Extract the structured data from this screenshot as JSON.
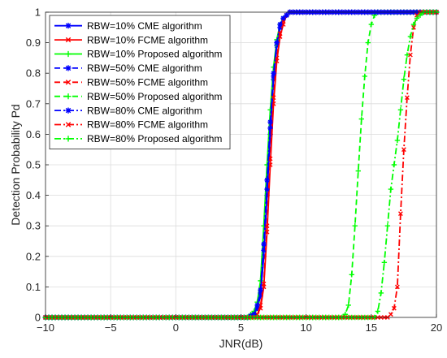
{
  "chart_data": {
    "type": "line",
    "title": "",
    "xlabel": "JNR(dB)",
    "ylabel": "Detection Probability Pd",
    "xlim": [
      -10,
      20
    ],
    "ylim": [
      0,
      1
    ],
    "xticks": [
      -10,
      -5,
      0,
      5,
      10,
      15,
      20
    ],
    "yticks": [
      0,
      0.1,
      0.2,
      0.3,
      0.4,
      0.5,
      0.6,
      0.7,
      0.8,
      0.9,
      1
    ],
    "grid": true,
    "legend_position": "top-left",
    "series": [
      {
        "name": "RBW=10% CME algorithm",
        "color": "#0000ff",
        "dash": "solid",
        "marker": "asterisk",
        "x": [
          -10,
          5.5,
          6.0,
          6.25,
          6.5,
          6.75,
          7.0,
          7.25,
          7.5,
          7.75,
          8.0,
          8.25,
          8.5,
          8.75,
          9.0,
          9.5,
          10,
          20
        ],
        "y": [
          0,
          0,
          0.01,
          0.03,
          0.07,
          0.2,
          0.4,
          0.6,
          0.78,
          0.89,
          0.95,
          0.98,
          0.99,
          1.0,
          1.0,
          1.0,
          1.0,
          1.0
        ]
      },
      {
        "name": "RBW=10% FCME algorithm",
        "color": "#ff0000",
        "dash": "solid",
        "marker": "cross",
        "x": [
          -10,
          5.75,
          6.25,
          6.5,
          6.75,
          7.0,
          7.25,
          7.5,
          7.75,
          8.0,
          8.25,
          8.5,
          8.75,
          9.0,
          9.25,
          9.5,
          10,
          20
        ],
        "y": [
          0,
          0,
          0.01,
          0.03,
          0.1,
          0.28,
          0.5,
          0.7,
          0.84,
          0.92,
          0.96,
          0.99,
          1.0,
          1.0,
          1.0,
          1.0,
          1.0,
          1.0
        ]
      },
      {
        "name": "RBW=10% Proposed algorithm",
        "color": "#00ff00",
        "dash": "solid",
        "marker": "plus",
        "x": [
          -10,
          5.5,
          6.0,
          6.25,
          6.5,
          6.75,
          7.0,
          7.25,
          7.5,
          7.75,
          8.0,
          8.25,
          8.5,
          8.75,
          9.0,
          9.5,
          10,
          20
        ],
        "y": [
          0,
          0,
          0.02,
          0.05,
          0.12,
          0.3,
          0.5,
          0.68,
          0.82,
          0.91,
          0.96,
          0.98,
          0.99,
          1.0,
          1.0,
          1.0,
          1.0,
          1.0
        ]
      },
      {
        "name": "RBW=50% CME algorithm",
        "color": "#0000ff",
        "dash": "dashed",
        "marker": "asterisk",
        "x": [
          -10,
          5.5,
          6.0,
          6.25,
          6.5,
          6.75,
          7.0,
          7.25,
          7.5,
          7.75,
          8.0,
          8.25,
          8.5,
          8.75,
          9.0,
          9.5,
          10,
          20
        ],
        "y": [
          0,
          0,
          0.01,
          0.03,
          0.08,
          0.22,
          0.42,
          0.62,
          0.79,
          0.9,
          0.95,
          0.98,
          0.99,
          1.0,
          1.0,
          1.0,
          1.0,
          1.0
        ]
      },
      {
        "name": "RBW=50% FCME algorithm",
        "color": "#ff0000",
        "dash": "dashed",
        "marker": "cross",
        "x": [
          -10,
          5.75,
          6.25,
          6.5,
          6.75,
          7.0,
          7.25,
          7.5,
          7.75,
          8.0,
          8.25,
          8.5,
          8.75,
          9.0,
          9.25,
          9.5,
          10,
          20
        ],
        "y": [
          0,
          0,
          0.01,
          0.04,
          0.11,
          0.3,
          0.52,
          0.72,
          0.85,
          0.93,
          0.97,
          0.99,
          1.0,
          1.0,
          1.0,
          1.0,
          1.0,
          1.0
        ]
      },
      {
        "name": "RBW=50% Proposed algorithm",
        "color": "#00ff00",
        "dash": "dashed",
        "marker": "plus",
        "x": [
          -10,
          12.75,
          13.0,
          13.25,
          13.5,
          13.75,
          14.0,
          14.25,
          14.5,
          14.75,
          15.0,
          15.25,
          15.5,
          15.75,
          16.0,
          16.25,
          20
        ],
        "y": [
          0,
          0,
          0.01,
          0.04,
          0.14,
          0.3,
          0.48,
          0.65,
          0.79,
          0.9,
          0.96,
          0.99,
          1.0,
          1.0,
          1.0,
          1.0,
          1.0
        ]
      },
      {
        "name": "RBW=80% CME algorithm",
        "color": "#0000ff",
        "dash": "dashdot",
        "marker": "asterisk",
        "x": [
          -10,
          5.5,
          6.0,
          6.25,
          6.5,
          6.75,
          7.0,
          7.25,
          7.5,
          7.75,
          8.0,
          8.25,
          8.5,
          8.75,
          9.0,
          9.5,
          10,
          20
        ],
        "y": [
          0,
          0,
          0.01,
          0.04,
          0.09,
          0.24,
          0.45,
          0.64,
          0.8,
          0.9,
          0.96,
          0.98,
          0.99,
          1.0,
          1.0,
          1.0,
          1.0,
          1.0
        ]
      },
      {
        "name": "RBW=80% FCME algorithm",
        "color": "#ff0000",
        "dash": "dashdot",
        "marker": "cross",
        "x": [
          -10,
          15.75,
          16.25,
          16.5,
          16.75,
          17.0,
          17.25,
          17.5,
          17.75,
          18.0,
          18.25,
          18.5,
          18.75,
          19.0,
          19.25,
          19.5,
          20
        ],
        "y": [
          0,
          0,
          0,
          0.01,
          0.03,
          0.1,
          0.34,
          0.55,
          0.72,
          0.86,
          0.95,
          0.99,
          1.0,
          1.0,
          1.0,
          1.0,
          1.0
        ]
      },
      {
        "name": "RBW=80% Proposed algorithm",
        "color": "#00ff00",
        "dash": "dashdot",
        "marker": "plus",
        "x": [
          -10,
          15.25,
          15.5,
          15.75,
          16.0,
          16.25,
          16.5,
          16.75,
          17.0,
          17.25,
          17.5,
          17.75,
          18.0,
          18.25,
          18.5,
          18.75,
          19.0,
          19.25,
          19.5,
          20
        ],
        "y": [
          0,
          0,
          0.02,
          0.08,
          0.18,
          0.3,
          0.42,
          0.5,
          0.58,
          0.68,
          0.78,
          0.86,
          0.92,
          0.96,
          0.98,
          0.99,
          1.0,
          1.0,
          1.0,
          1.0
        ]
      }
    ]
  }
}
